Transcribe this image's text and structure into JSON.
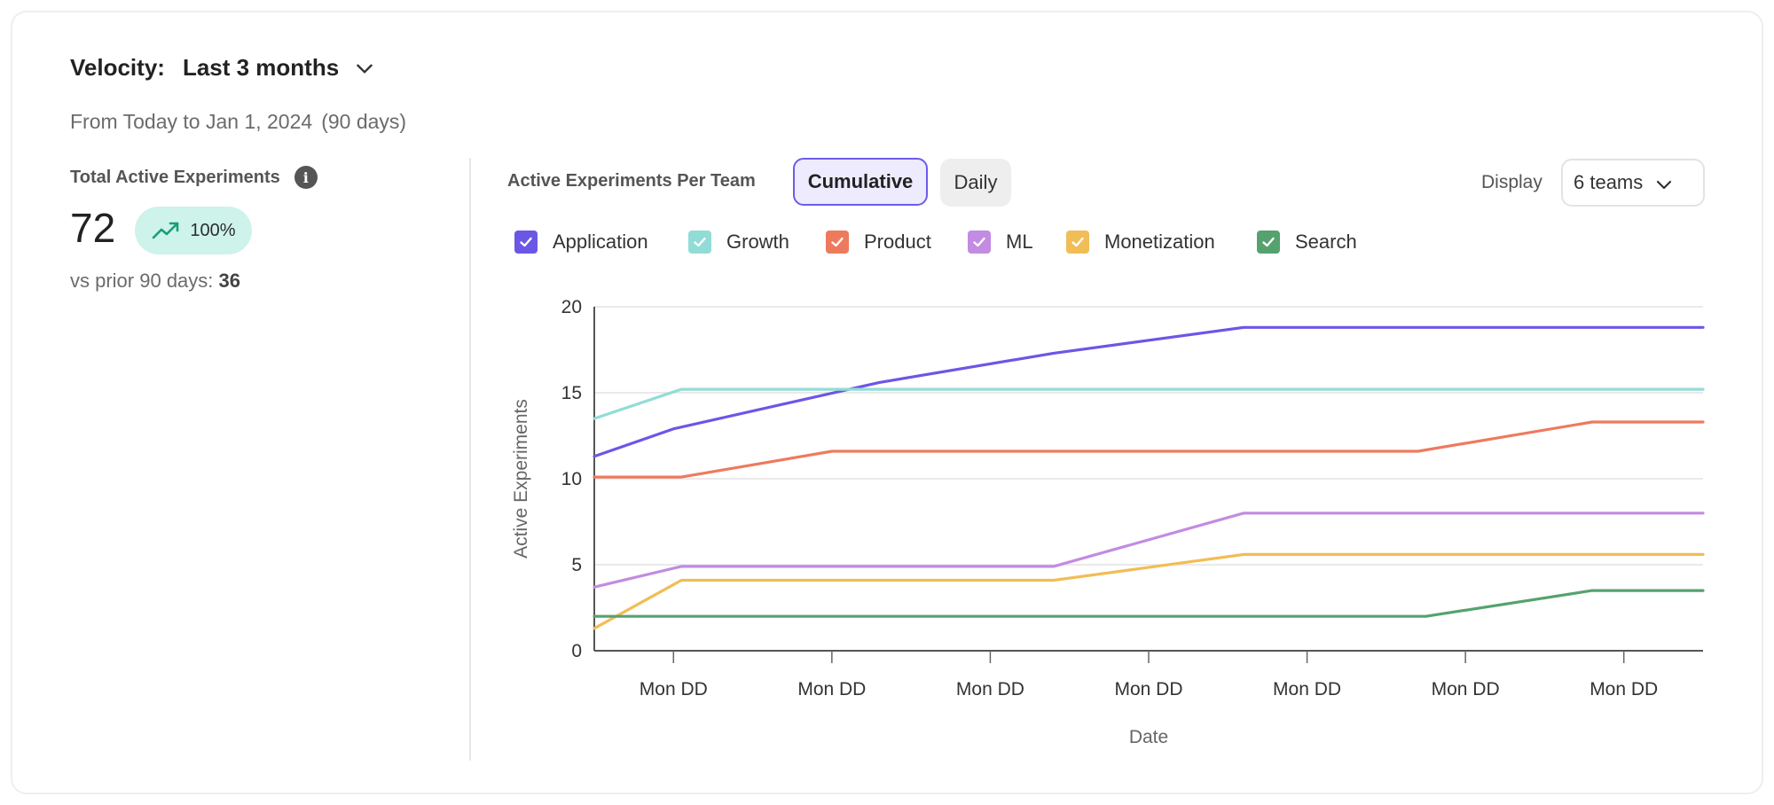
{
  "header": {
    "velocity_label": "Velocity:",
    "period_value": "Last 3 months",
    "range_text": "From Today to Jan 1, 2024",
    "range_days": "(90 days)"
  },
  "summary": {
    "label": "Total Active Experiments",
    "info_icon": "info-icon",
    "total": "72",
    "change": "100%",
    "change_icon": "trending-up-icon",
    "prior_label": "vs prior 90 days:",
    "prior_value": "36"
  },
  "controls": {
    "title": "Active Experiments Per Team",
    "modes": [
      "Cumulative",
      "Daily"
    ],
    "active_mode": "Cumulative",
    "display_label": "Display",
    "display_value": "6 teams"
  },
  "colors": {
    "Application": "#6b57e6",
    "Growth": "#92dcd6",
    "Product": "#ee7a5e",
    "ML": "#c38be1",
    "Monetization": "#f1bd56",
    "Search": "#55a26f",
    "accent": "#6b5ce8",
    "badge_bg": "#cdf3ea"
  },
  "chart_data": {
    "type": "line",
    "xlabel": "Date",
    "ylabel": "Active Experiments",
    "ylim": [
      0,
      20
    ],
    "yticks": [
      0,
      5,
      10,
      15,
      20
    ],
    "x_tick_labels": [
      "Mon DD",
      "Mon DD",
      "Mon DD",
      "Mon DD",
      "Mon DD",
      "Mon DD",
      "Mon DD"
    ],
    "xlim": [
      0,
      7
    ],
    "grid": "horizontal",
    "legend_position": "top",
    "series": [
      {
        "name": "Application",
        "checked": true,
        "points": [
          [
            0,
            11.3
          ],
          [
            0.5,
            12.9
          ],
          [
            1.8,
            15.6
          ],
          [
            2.9,
            17.3
          ],
          [
            4.1,
            18.8
          ],
          [
            7,
            18.8
          ]
        ]
      },
      {
        "name": "Growth",
        "checked": true,
        "points": [
          [
            0,
            13.5
          ],
          [
            0.55,
            15.2
          ],
          [
            7,
            15.2
          ]
        ]
      },
      {
        "name": "Product",
        "checked": true,
        "points": [
          [
            0,
            10.1
          ],
          [
            0.55,
            10.1
          ],
          [
            1.5,
            11.6
          ],
          [
            5.2,
            11.6
          ],
          [
            6.3,
            13.3
          ],
          [
            7,
            13.3
          ]
        ]
      },
      {
        "name": "ML",
        "checked": true,
        "points": [
          [
            0,
            3.7
          ],
          [
            0.55,
            4.9
          ],
          [
            2.9,
            4.9
          ],
          [
            4.1,
            8.0
          ],
          [
            7,
            8.0
          ]
        ]
      },
      {
        "name": "Monetization",
        "checked": true,
        "points": [
          [
            0,
            1.3
          ],
          [
            0.55,
            4.1
          ],
          [
            2.9,
            4.1
          ],
          [
            4.1,
            5.6
          ],
          [
            7,
            5.6
          ]
        ]
      },
      {
        "name": "Search",
        "checked": true,
        "points": [
          [
            0,
            2.0
          ],
          [
            5.25,
            2.0
          ],
          [
            6.3,
            3.5
          ],
          [
            7,
            3.5
          ]
        ]
      }
    ]
  }
}
